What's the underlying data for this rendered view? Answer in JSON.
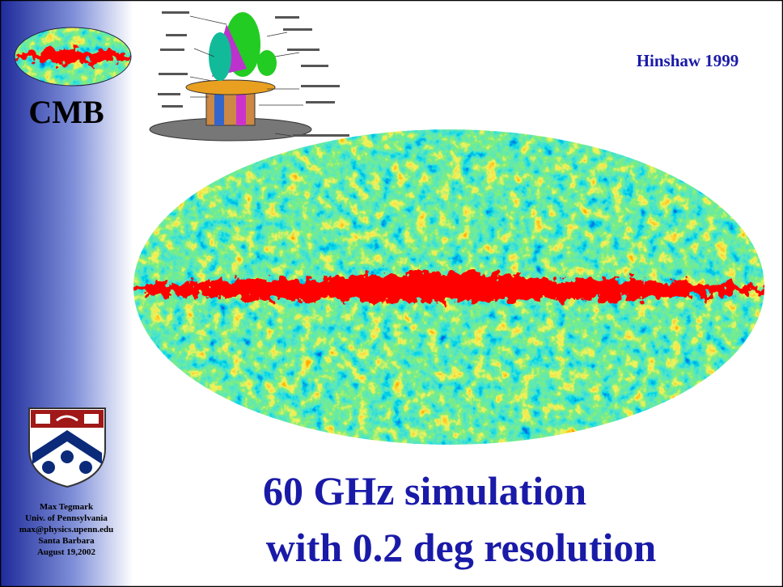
{
  "sidebar": {
    "title": "CMB",
    "author": [
      "Max Tegmark",
      "Univ. of Pennsylvania",
      "max@physics.upenn.edu",
      "Santa Barbara",
      "August 19,2002"
    ]
  },
  "slide": {
    "credit": "Hinshaw 1999",
    "heading": [
      "60 GHz simulation",
      "with 0.2 deg resolution"
    ]
  }
}
